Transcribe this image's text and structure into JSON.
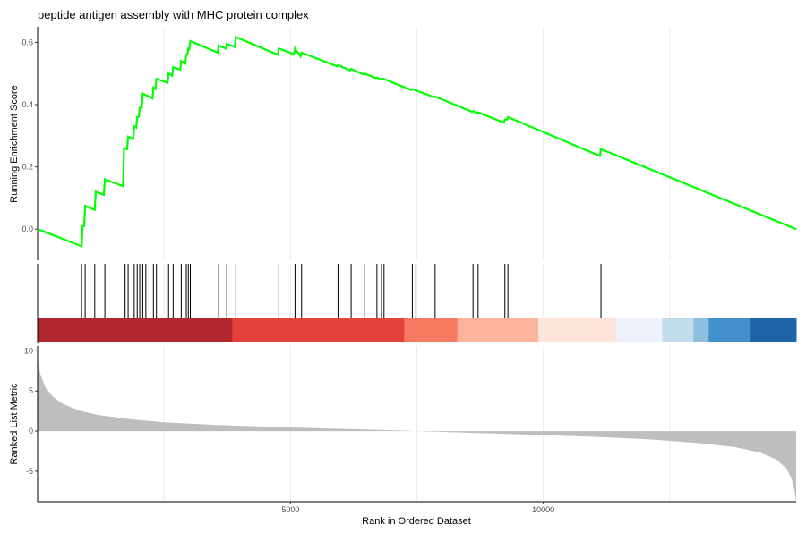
{
  "chart_data": {
    "type": "line",
    "title": "peptide antigen assembly with MHC protein complex",
    "xlabel": "Rank in Ordered Dataset",
    "xlim": [
      0,
      15000
    ],
    "x_ticks": [
      5000,
      10000
    ],
    "grid": "vertical",
    "enrichment_panel": {
      "ylabel": "Running Enrichment Score",
      "ylim": [
        -0.1,
        0.65
      ],
      "y_ticks": [
        0.0,
        0.2,
        0.4,
        0.6
      ],
      "line_color": "#00ff00",
      "points": [
        [
          0,
          0.0
        ],
        [
          870,
          -0.055
        ],
        [
          890,
          0.01
        ],
        [
          920,
          0.01
        ],
        [
          940,
          0.075
        ],
        [
          1130,
          0.062
        ],
        [
          1150,
          0.12
        ],
        [
          1310,
          0.11
        ],
        [
          1330,
          0.16
        ],
        [
          1690,
          0.138
        ],
        [
          1710,
          0.26
        ],
        [
          1770,
          0.257
        ],
        [
          1790,
          0.297
        ],
        [
          1890,
          0.29
        ],
        [
          1910,
          0.33
        ],
        [
          1950,
          0.326
        ],
        [
          1970,
          0.36
        ],
        [
          2000,
          0.36
        ],
        [
          2020,
          0.39
        ],
        [
          2060,
          0.39
        ],
        [
          2080,
          0.435
        ],
        [
          2270,
          0.42
        ],
        [
          2290,
          0.455
        ],
        [
          2330,
          0.45
        ],
        [
          2350,
          0.483
        ],
        [
          2570,
          0.47
        ],
        [
          2590,
          0.5
        ],
        [
          2660,
          0.493
        ],
        [
          2680,
          0.52
        ],
        [
          2820,
          0.512
        ],
        [
          2840,
          0.54
        ],
        [
          2920,
          0.532
        ],
        [
          2940,
          0.56
        ],
        [
          2960,
          0.56
        ],
        [
          2980,
          0.58
        ],
        [
          3000,
          0.578
        ],
        [
          3020,
          0.604
        ],
        [
          3560,
          0.567
        ],
        [
          3580,
          0.59
        ],
        [
          3720,
          0.58
        ],
        [
          3740,
          0.595
        ],
        [
          3900,
          0.585
        ],
        [
          3920,
          0.617
        ],
        [
          4750,
          0.56
        ],
        [
          4770,
          0.58
        ],
        [
          5070,
          0.562
        ],
        [
          5090,
          0.58
        ],
        [
          5200,
          0.555
        ],
        [
          5220,
          0.567
        ],
        [
          5920,
          0.523
        ],
        [
          5940,
          0.527
        ],
        [
          6180,
          0.51
        ],
        [
          6200,
          0.515
        ],
        [
          6440,
          0.497
        ],
        [
          6460,
          0.5
        ],
        [
          6690,
          0.485
        ],
        [
          6710,
          0.487
        ],
        [
          6780,
          0.481
        ],
        [
          6800,
          0.484
        ],
        [
          6850,
          0.482
        ],
        [
          7390,
          0.447
        ],
        [
          7410,
          0.45
        ],
        [
          7840,
          0.424
        ],
        [
          7860,
          0.426
        ],
        [
          8590,
          0.377
        ],
        [
          8610,
          0.38
        ],
        [
          8690,
          0.372
        ],
        [
          8710,
          0.375
        ],
        [
          9220,
          0.342
        ],
        [
          9240,
          0.352
        ],
        [
          9280,
          0.352
        ],
        [
          9300,
          0.36
        ],
        [
          11120,
          0.235
        ],
        [
          11140,
          0.257
        ],
        [
          15000,
          0.0
        ]
      ]
    },
    "hit_panel": {
      "hits": [
        870,
        940,
        1130,
        1330,
        1710,
        1730,
        1790,
        1910,
        1970,
        2020,
        2080,
        2140,
        2290,
        2350,
        2590,
        2680,
        2840,
        2940,
        2980,
        3020,
        3580,
        3740,
        3920,
        4770,
        5090,
        5220,
        5940,
        6200,
        6460,
        6710,
        6800,
        6850,
        7410,
        7480,
        7860,
        8610,
        8710,
        9240,
        9300,
        11140
      ],
      "color_bands": [
        {
          "end": 3850,
          "color": "#b2262e"
        },
        {
          "end": 7250,
          "color": "#e3413a"
        },
        {
          "end": 8300,
          "color": "#f57a5f"
        },
        {
          "end": 9900,
          "color": "#fbb39c"
        },
        {
          "end": 11450,
          "color": "#fde5dc"
        },
        {
          "end": 12350,
          "color": "#eef3fb"
        },
        {
          "end": 12970,
          "color": "#c3dcec"
        },
        {
          "end": 13270,
          "color": "#8ebfde"
        },
        {
          "end": 14100,
          "color": "#4490ca"
        },
        {
          "end": 15000,
          "color": "#1e65a8"
        }
      ]
    },
    "ranked_panel": {
      "ylabel": "Ranked List Metric",
      "ylim": [
        -8.8,
        10.6
      ],
      "y_ticks": [
        10,
        5,
        0,
        -5
      ],
      "fill_color": "#bebebe",
      "curve": [
        [
          0,
          8.8
        ],
        [
          60,
          7.0
        ],
        [
          150,
          5.5
        ],
        [
          300,
          4.3
        ],
        [
          500,
          3.4
        ],
        [
          800,
          2.6
        ],
        [
          1200,
          2.0
        ],
        [
          1800,
          1.5
        ],
        [
          2500,
          1.1
        ],
        [
          3500,
          0.78
        ],
        [
          5000,
          0.45
        ],
        [
          6500,
          0.2
        ],
        [
          7300,
          0.05
        ],
        [
          7500,
          0.0
        ],
        [
          8000,
          -0.1
        ],
        [
          9000,
          -0.3
        ],
        [
          10000,
          -0.5
        ],
        [
          11000,
          -0.72
        ],
        [
          12000,
          -1.0
        ],
        [
          13000,
          -1.45
        ],
        [
          13800,
          -2.0
        ],
        [
          14300,
          -2.7
        ],
        [
          14600,
          -3.5
        ],
        [
          14800,
          -4.6
        ],
        [
          14900,
          -5.8
        ],
        [
          14960,
          -7.2
        ],
        [
          15000,
          -8.8
        ]
      ]
    }
  }
}
